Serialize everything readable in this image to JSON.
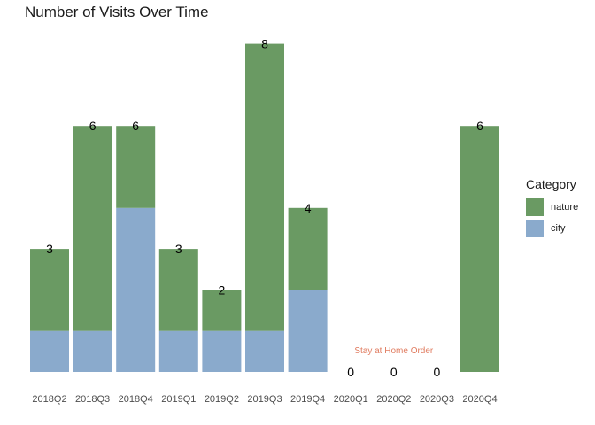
{
  "chart_data": {
    "type": "bar",
    "stacked": true,
    "title": "Number of Visits Over Time",
    "xlabel": "",
    "ylabel": "",
    "ylim": [
      0,
      8.2
    ],
    "grid": false,
    "legend_position": "right",
    "legend_title": "Category",
    "categories": [
      "2018Q2",
      "2018Q3",
      "2018Q4",
      "2019Q1",
      "2019Q2",
      "2019Q3",
      "2019Q4",
      "2020Q1",
      "2020Q2",
      "2020Q3",
      "2020Q4"
    ],
    "series": [
      {
        "name": "city",
        "color": "#8aaacc",
        "values": [
          1,
          1,
          4,
          1,
          1,
          1,
          2,
          0,
          0,
          0,
          0
        ]
      },
      {
        "name": "nature",
        "color": "#6a9a63",
        "values": [
          2,
          5,
          2,
          2,
          1,
          7,
          2,
          0,
          0,
          0,
          6
        ]
      }
    ],
    "totals": [
      "3",
      "6",
      "6",
      "3",
      "2",
      "8",
      "4",
      "0",
      "0",
      "0",
      "6"
    ],
    "legend_order": [
      "nature",
      "city"
    ],
    "annotations": [
      {
        "text": "Stay at Home Order",
        "category": "2020Q2",
        "y": 0.5,
        "color": "#e07b5f"
      }
    ]
  }
}
